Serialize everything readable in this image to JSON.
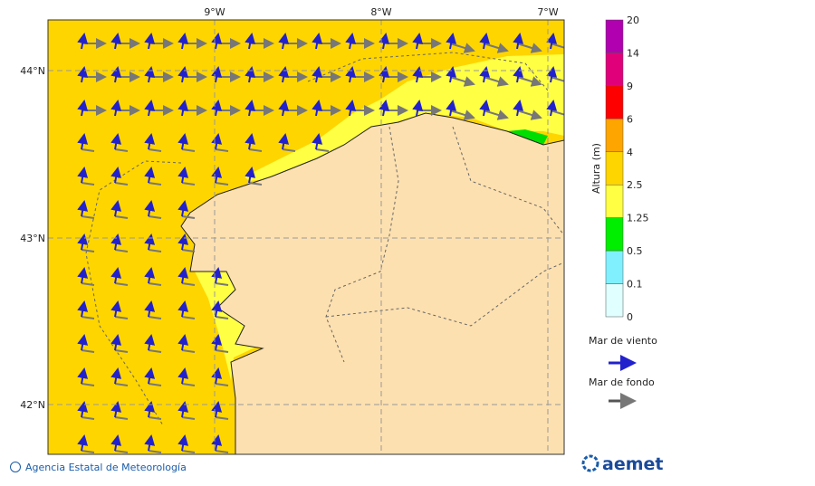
{
  "map": {
    "x_labels": [
      "9°W",
      "8°W",
      "7°W"
    ],
    "y_labels": [
      "44°N",
      "43°N",
      "42°N"
    ]
  },
  "colorbar": {
    "title": "Altura (m)",
    "labels": [
      "20",
      "14",
      "9",
      "6",
      "4",
      "2.5",
      "1.25",
      "0.5",
      "0.1",
      "0"
    ]
  },
  "legend": {
    "wind": "Mar de viento",
    "swell": "Mar de fondo"
  },
  "footer": {
    "agency": "Agencia Estatal de Meteorología",
    "logo": "aemet"
  }
}
